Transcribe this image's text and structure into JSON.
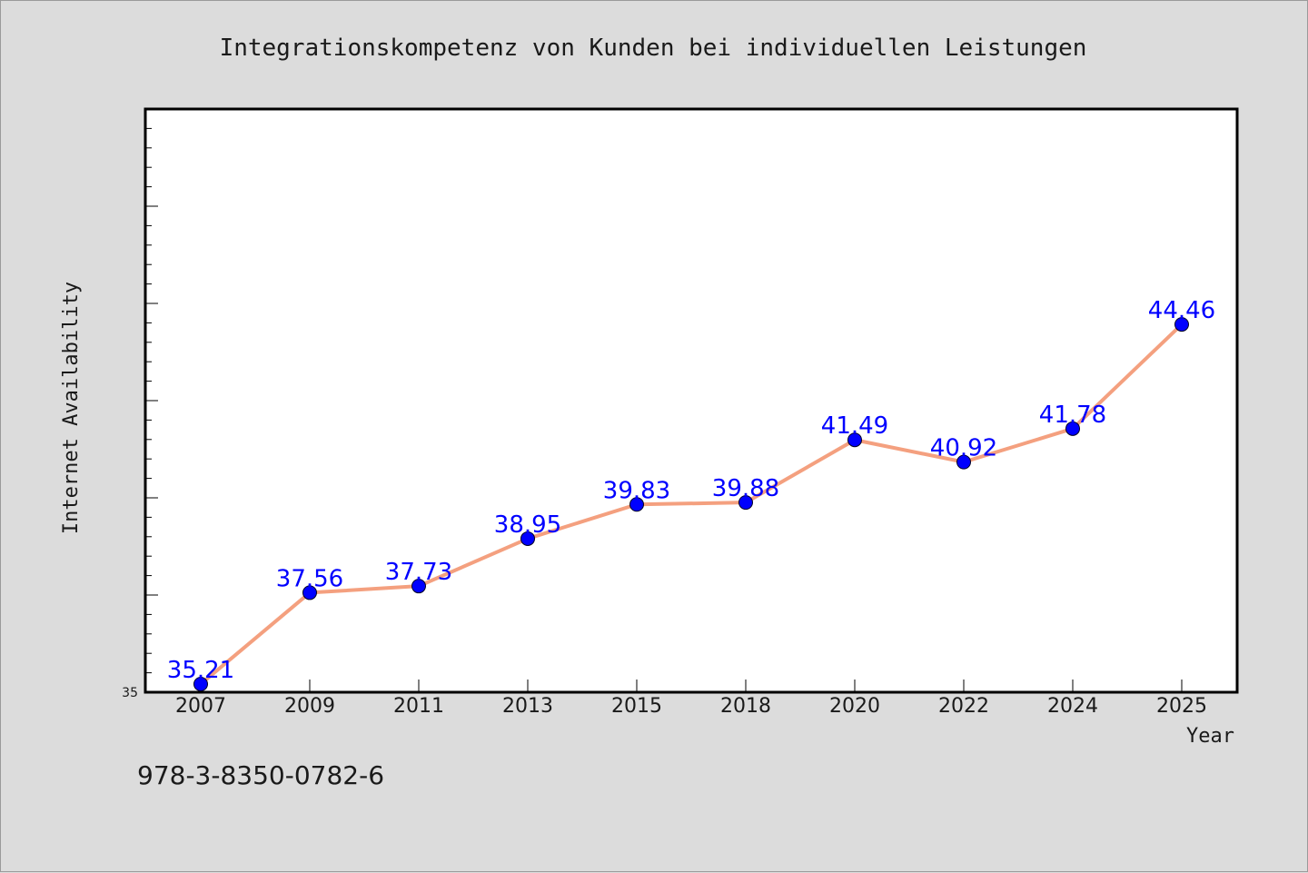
{
  "chart_data": {
    "type": "line",
    "title": "Integrationskompetenz von Kunden bei individuellen Leistungen",
    "xlabel": "Year",
    "ylabel": "Internet Availability",
    "categories": [
      "2007",
      "2009",
      "2011",
      "2013",
      "2015",
      "2018",
      "2020",
      "2022",
      "2024",
      "2025"
    ],
    "values": [
      35.21,
      37.56,
      37.73,
      38.95,
      39.83,
      39.88,
      41.49,
      40.92,
      41.78,
      44.46
    ],
    "data_labels": [
      "35.21",
      "37.56",
      "37.73",
      "38.95",
      "39.83",
      "39.88",
      "41.49",
      "40.92",
      "41.78",
      "44.46"
    ],
    "ylim": [
      35,
      50
    ],
    "yticks_labeled": [
      "35"
    ],
    "grid": false,
    "legend": "none",
    "colors": {
      "line": "#f4a07f",
      "marker": "#0000ff",
      "data_label": "#0000ff"
    }
  },
  "footer": {
    "isbn": "978-3-8350-0782-6"
  }
}
